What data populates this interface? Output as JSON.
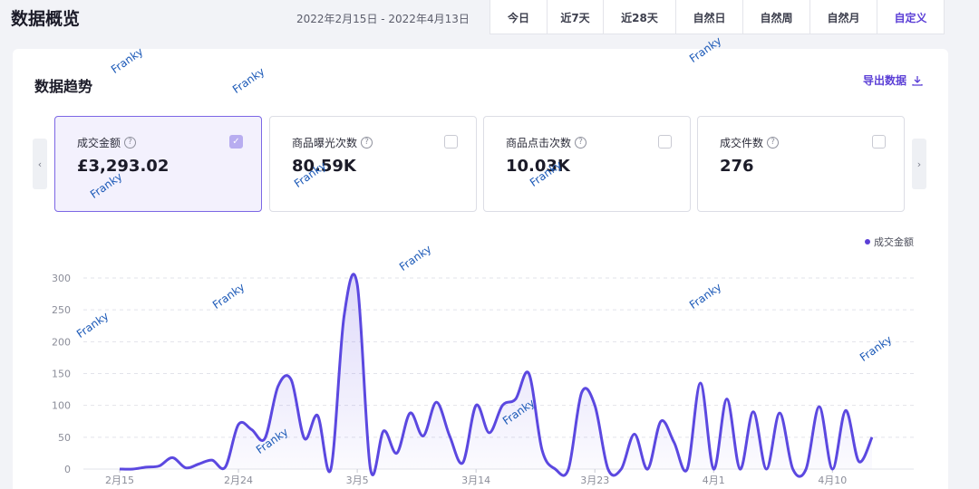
{
  "header": {
    "title": "数据概览",
    "date_range": "2022年2月15日 - 2022年4月13日",
    "tabs": [
      {
        "label": "今日",
        "active": false
      },
      {
        "label": "近7天",
        "active": false
      },
      {
        "label": "近28天",
        "active": false
      },
      {
        "label": "自然日",
        "active": false
      },
      {
        "label": "自然周",
        "active": false
      },
      {
        "label": "自然月",
        "active": false
      },
      {
        "label": "自定义",
        "active": true
      }
    ]
  },
  "trend": {
    "title": "数据趋势",
    "export_label": "导出数据",
    "export_icon": "download-icon",
    "prev_arrow": "‹",
    "next_arrow": "›",
    "metrics": [
      {
        "label": "成交金额",
        "value": "£3,293.02",
        "selected": true
      },
      {
        "label": "商品曝光次数",
        "value": "80.59K",
        "selected": false
      },
      {
        "label": "商品点击次数",
        "value": "10.03K",
        "selected": false
      },
      {
        "label": "成交件数",
        "value": "276",
        "selected": false
      }
    ],
    "legend_label": "成交金额"
  },
  "colors": {
    "accent": "#5b3fd6",
    "line": "#5b48e0",
    "watermark": "#1e5bb8"
  },
  "watermark_text": "Franky",
  "chart_data": {
    "type": "area",
    "title": "",
    "xlabel": "",
    "ylabel": "",
    "ylim": [
      0,
      300
    ],
    "yticks": [
      0,
      50,
      100,
      150,
      200,
      250,
      300
    ],
    "xtick_labels": [
      "2月15",
      "2月24",
      "3月5",
      "3月14",
      "3月23",
      "4月1",
      "4月10"
    ],
    "grid": true,
    "legend_position": "top-right",
    "series": [
      {
        "name": "成交金额",
        "x": [
          "2月15",
          "2月16",
          "2月17",
          "2月18",
          "2月19",
          "2月20",
          "2月21",
          "2月22",
          "2月23",
          "2月24",
          "2月25",
          "2月26",
          "2月27",
          "2月28",
          "3月1",
          "3月2",
          "3月3",
          "3月4",
          "3月5",
          "3月6",
          "3月7",
          "3月8",
          "3月9",
          "3月10",
          "3月11",
          "3月12",
          "3月13",
          "3月14",
          "3月15",
          "3月16",
          "3月17",
          "3月18",
          "3月19",
          "3月20",
          "3月21",
          "3月22",
          "3月23",
          "3月24",
          "3月25",
          "3月26",
          "3月27",
          "3月28",
          "3月29",
          "3月30",
          "3月31",
          "4月1",
          "4月2",
          "4月3",
          "4月4",
          "4月5",
          "4月6",
          "4月7",
          "4月8",
          "4月9",
          "4月10",
          "4月11",
          "4月12",
          "4月13"
        ],
        "values": [
          0,
          0,
          3,
          5,
          18,
          2,
          8,
          14,
          3,
          70,
          62,
          48,
          130,
          140,
          48,
          84,
          0,
          240,
          290,
          0,
          60,
          25,
          88,
          52,
          105,
          52,
          10,
          100,
          57,
          100,
          110,
          150,
          30,
          0,
          0,
          120,
          100,
          0,
          0,
          55,
          0,
          75,
          42,
          0,
          135,
          0,
          110,
          0,
          90,
          0,
          88,
          0,
          0,
          98,
          0,
          92,
          12,
          50
        ]
      }
    ]
  }
}
